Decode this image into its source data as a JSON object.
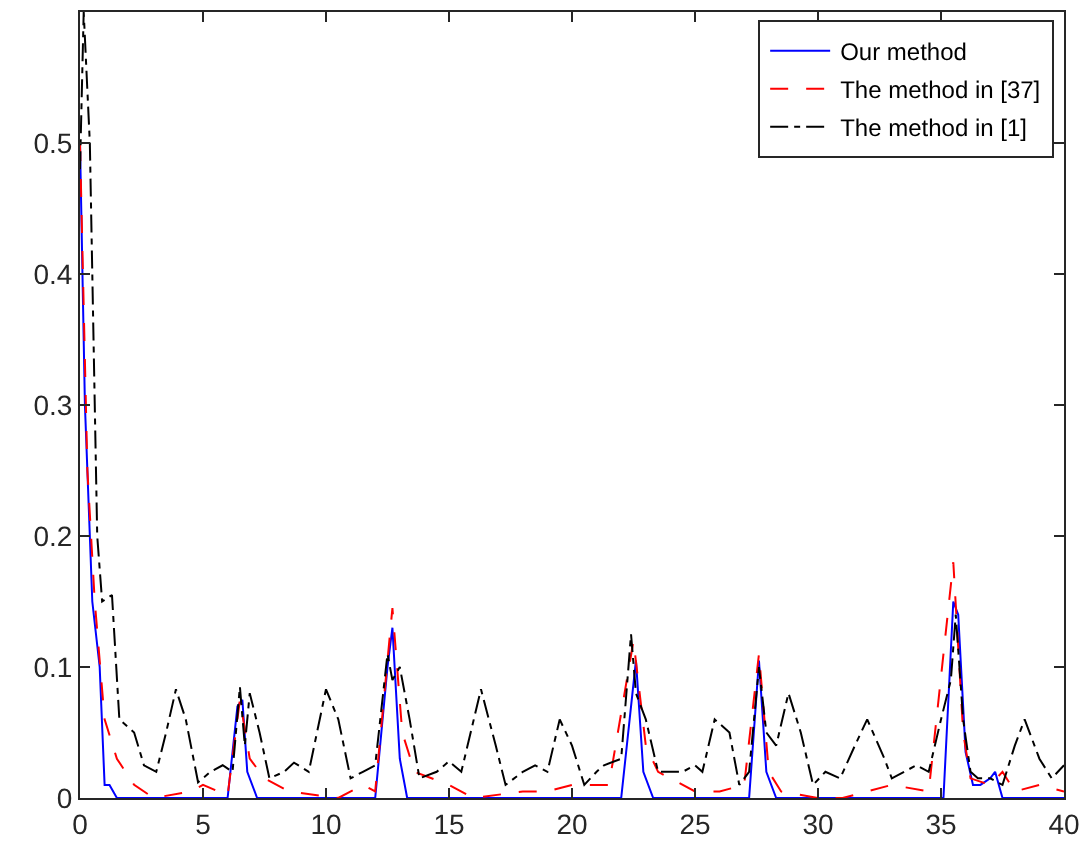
{
  "chart_data": {
    "type": "line",
    "xlim": [
      0,
      40
    ],
    "ylim": [
      0,
      0.6
    ],
    "xticks": [
      0,
      5,
      10,
      15,
      20,
      25,
      30,
      35,
      40
    ],
    "yticks": [
      0,
      0.1,
      0.2,
      0.3,
      0.4,
      0.5
    ],
    "legend": "top right",
    "marker": "none",
    "series": [
      {
        "name": "Our method",
        "color": "#0000ff",
        "line_style": "solid",
        "x": [
          0,
          0.2,
          0.5,
          0.8,
          1.0,
          1.2,
          1.5,
          6.0,
          6.4,
          6.6,
          6.8,
          7.2,
          12.0,
          12.5,
          12.7,
          13.0,
          13.3,
          22.0,
          22.4,
          22.6,
          22.9,
          23.3,
          27.2,
          27.6,
          27.9,
          28.3,
          35.1,
          35.5,
          35.7,
          36.0,
          36.3,
          36.6,
          37.0,
          37.2,
          37.5,
          40
        ],
        "values": [
          0.5,
          0.3,
          0.15,
          0.1,
          0.01,
          0.01,
          0,
          0,
          0.07,
          0.075,
          0.02,
          0,
          0,
          0.1,
          0.13,
          0.03,
          0,
          0,
          0.07,
          0.105,
          0.02,
          0,
          0,
          0.105,
          0.02,
          0,
          0,
          0.15,
          0.14,
          0.035,
          0.01,
          0.01,
          0.015,
          0.02,
          0,
          0
        ]
      },
      {
        "name": "The method in [37]",
        "color": "#ff0000",
        "line_style": "dashed",
        "x": [
          0,
          0.3,
          0.6,
          1.0,
          1.5,
          2.2,
          3,
          4.5,
          5.0,
          6.0,
          6.5,
          6.9,
          7.5,
          8.5,
          10.5,
          11.5,
          12.0,
          12.7,
          13.1,
          13.6,
          15,
          16,
          18,
          19,
          20,
          21.5,
          22.5,
          23,
          23.5,
          25,
          26,
          27,
          27.6,
          28,
          28.5,
          30,
          31,
          32,
          33,
          34.5,
          35.5,
          35.9,
          36.2,
          37,
          37.5,
          38,
          39,
          40
        ],
        "values": [
          0.5,
          0.25,
          0.15,
          0.06,
          0.03,
          0.01,
          0,
          0.005,
          0.01,
          0.002,
          0.075,
          0.03,
          0.015,
          0.005,
          0,
          0.01,
          0.005,
          0.145,
          0.05,
          0.02,
          0.01,
          0,
          0.005,
          0.005,
          0.01,
          0.01,
          0.12,
          0.04,
          0.02,
          0.005,
          0.005,
          0.01,
          0.11,
          0.02,
          0.005,
          0,
          0,
          0.005,
          0.01,
          0.005,
          0.18,
          0.05,
          0.015,
          0.01,
          0.02,
          0.005,
          0.01,
          0.005
        ]
      },
      {
        "name": "The method in [1]",
        "color": "#000000",
        "line_style": "dashdot",
        "x": [
          0,
          0.15,
          0.4,
          0.7,
          0.9,
          1.3,
          1.6,
          2.2,
          2.6,
          3.1,
          3.5,
          3.9,
          4.3,
          4.8,
          5.3,
          5.8,
          6.2,
          6.5,
          6.7,
          6.9,
          7.3,
          7.7,
          8.3,
          8.7,
          9.3,
          10.0,
          10.5,
          11.0,
          11.5,
          12.0,
          12.5,
          12.7,
          13.0,
          13.4,
          13.8,
          14.5,
          15.0,
          15.5,
          16.3,
          16.9,
          17.3,
          18,
          18.5,
          19,
          19.5,
          20,
          20.5,
          21,
          21.3,
          22,
          22.4,
          22.6,
          23,
          23.5,
          24.5,
          25,
          25.3,
          25.8,
          26.4,
          26.8,
          27.2,
          27.6,
          27.9,
          28.3,
          28.8,
          29.3,
          29.8,
          30.3,
          30.9,
          31.5,
          32,
          32.7,
          33,
          33.5,
          34,
          34.5,
          35,
          35.4,
          35.6,
          35.9,
          36.2,
          36.5,
          37,
          37.5,
          38,
          38.4,
          39,
          39.5,
          40
        ],
        "values": [
          0.48,
          0.6,
          0.5,
          0.2,
          0.15,
          0.155,
          0.06,
          0.05,
          0.025,
          0.02,
          0.05,
          0.083,
          0.06,
          0.012,
          0.02,
          0.025,
          0.02,
          0.085,
          0.04,
          0.08,
          0.05,
          0.015,
          0.02,
          0.027,
          0.02,
          0.083,
          0.06,
          0.015,
          0.02,
          0.025,
          0.11,
          0.09,
          0.1,
          0.06,
          0.015,
          0.02,
          0.028,
          0.02,
          0.083,
          0.04,
          0.01,
          0.02,
          0.025,
          0.02,
          0.06,
          0.04,
          0.01,
          0.02,
          0.025,
          0.03,
          0.125,
          0.08,
          0.06,
          0.02,
          0.02,
          0.025,
          0.02,
          0.06,
          0.05,
          0.01,
          0.02,
          0.1,
          0.05,
          0.04,
          0.08,
          0.05,
          0.01,
          0.02,
          0.015,
          0.04,
          0.06,
          0.03,
          0.015,
          0.02,
          0.025,
          0.02,
          0.06,
          0.09,
          0.14,
          0.06,
          0.02,
          0.015,
          0.015,
          0.01,
          0.04,
          0.06,
          0.03,
          0.015,
          0.025
        ]
      }
    ]
  }
}
